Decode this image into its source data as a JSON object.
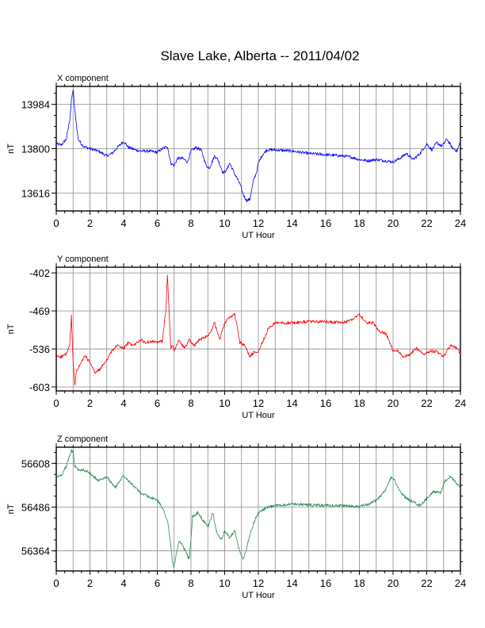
{
  "title": "Slave Lake, Alberta -- 2011/04/02",
  "chart_data": [
    {
      "type": "line",
      "title": "X component",
      "xlabel": "UT Hour",
      "ylabel": "nT",
      "xlim": [
        0,
        24
      ],
      "ylim": [
        13542,
        14058
      ],
      "xticks": [
        0,
        2,
        4,
        6,
        8,
        10,
        12,
        14,
        16,
        18,
        20,
        22,
        24
      ],
      "yticks": [
        13616,
        13800,
        13984
      ],
      "grid": true,
      "color": "#0000ff",
      "series": [
        {
          "x": [
            0,
            0.3,
            0.6,
            0.8,
            0.9,
            1.0,
            1.1,
            1.3,
            1.6,
            2.0,
            2.5,
            3.0,
            3.3,
            3.7,
            4.0,
            4.3,
            4.7,
            5.0,
            5.5,
            6.0,
            6.3,
            6.6,
            6.8,
            7.0,
            7.2,
            7.5,
            7.8,
            8.0,
            8.3,
            8.6,
            8.9,
            9.1,
            9.4,
            9.6,
            9.9,
            10.1,
            10.3,
            10.6,
            10.9,
            11.1,
            11.3,
            11.5,
            11.7,
            11.9,
            12.0,
            12.2,
            12.5,
            13.0,
            14.0,
            15.0,
            16.0,
            17.0,
            17.5,
            18.0,
            18.5,
            19.0,
            19.5,
            20.0,
            20.4,
            20.8,
            21.2,
            21.6,
            22.0,
            22.3,
            22.6,
            22.9,
            23.2,
            23.5,
            23.8,
            24.0
          ],
          "values": [
            13820,
            13815,
            13840,
            13920,
            14000,
            14045,
            13960,
            13840,
            13810,
            13800,
            13790,
            13770,
            13780,
            13810,
            13830,
            13805,
            13795,
            13790,
            13790,
            13785,
            13800,
            13810,
            13740,
            13730,
            13760,
            13760,
            13745,
            13790,
            13805,
            13795,
            13730,
            13720,
            13770,
            13755,
            13700,
            13710,
            13740,
            13695,
            13655,
            13610,
            13585,
            13590,
            13665,
            13705,
            13740,
            13770,
            13795,
            13795,
            13790,
            13780,
            13775,
            13770,
            13765,
            13755,
            13750,
            13755,
            13750,
            13745,
            13760,
            13780,
            13755,
            13780,
            13820,
            13795,
            13825,
            13810,
            13840,
            13805,
            13790,
            13830
          ]
        }
      ]
    },
    {
      "type": "line",
      "title": "Y component",
      "xlabel": "UT Hour",
      "ylabel": "nT",
      "xlim": [
        0,
        24
      ],
      "ylim": [
        -610,
        -392
      ],
      "xticks": [
        0,
        2,
        4,
        6,
        8,
        10,
        12,
        14,
        16,
        18,
        20,
        22,
        24
      ],
      "yticks": [
        -402,
        -469,
        -536,
        -603
      ],
      "grid": true,
      "color": "#ff0000",
      "series": [
        {
          "x": [
            0,
            0.3,
            0.6,
            0.8,
            0.9,
            1.0,
            1.1,
            1.2,
            1.4,
            1.7,
            2.0,
            2.3,
            2.6,
            3.0,
            3.3,
            3.6,
            4.0,
            4.3,
            4.6,
            5.0,
            5.3,
            5.6,
            6.0,
            6.3,
            6.5,
            6.6,
            6.7,
            6.8,
            6.9,
            7.0,
            7.3,
            7.6,
            7.9,
            8.2,
            8.5,
            8.8,
            9.1,
            9.4,
            9.7,
            10.0,
            10.3,
            10.6,
            10.9,
            11.2,
            11.5,
            11.8,
            12.0,
            12.3,
            12.6,
            13.0,
            14.0,
            15.0,
            16.0,
            17.0,
            17.5,
            18.0,
            18.4,
            18.8,
            19.2,
            19.6,
            20.0,
            20.3,
            20.6,
            21.0,
            21.4,
            21.8,
            22.2,
            22.6,
            23.0,
            23.4,
            23.8,
            24.0
          ],
          "values": [
            -548,
            -550,
            -545,
            -530,
            -478,
            -560,
            -600,
            -575,
            -565,
            -548,
            -560,
            -578,
            -572,
            -555,
            -540,
            -530,
            -535,
            -525,
            -530,
            -520,
            -525,
            -522,
            -525,
            -522,
            -470,
            -405,
            -470,
            -535,
            -530,
            -540,
            -520,
            -535,
            -520,
            -530,
            -520,
            -515,
            -510,
            -490,
            -520,
            -490,
            -480,
            -475,
            -525,
            -530,
            -550,
            -540,
            -540,
            -520,
            -500,
            -490,
            -490,
            -488,
            -488,
            -490,
            -485,
            -475,
            -490,
            -490,
            -505,
            -510,
            -540,
            -540,
            -550,
            -545,
            -535,
            -545,
            -540,
            -540,
            -550,
            -530,
            -535,
            -545
          ]
        }
      ]
    },
    {
      "type": "line",
      "title": "Z component",
      "xlabel": "UT Hour",
      "ylabel": "nT",
      "xlim": [
        0,
        24
      ],
      "ylim": [
        56308,
        56653
      ],
      "xticks": [
        0,
        2,
        4,
        6,
        8,
        10,
        12,
        14,
        16,
        18,
        20,
        22,
        24
      ],
      "yticks": [
        56364,
        56486,
        56608
      ],
      "grid": true,
      "color": "#2e8b57",
      "series": [
        {
          "x": [
            0,
            0.3,
            0.6,
            0.8,
            0.9,
            1.0,
            1.1,
            1.3,
            1.6,
            2.0,
            2.5,
            3.0,
            3.5,
            4.0,
            4.3,
            4.7,
            5.0,
            5.5,
            6.0,
            6.3,
            6.6,
            6.8,
            6.9,
            7.0,
            7.1,
            7.3,
            7.6,
            7.9,
            8.1,
            8.4,
            8.7,
            9.0,
            9.3,
            9.5,
            9.8,
            10.0,
            10.3,
            10.6,
            10.9,
            11.1,
            11.3,
            11.5,
            11.8,
            12.0,
            12.3,
            12.6,
            13.0,
            14.0,
            15.0,
            16.0,
            17.0,
            18.0,
            18.5,
            19.0,
            19.5,
            19.9,
            20.1,
            20.4,
            20.8,
            21.2,
            21.6,
            22.0,
            22.4,
            22.8,
            23.1,
            23.4,
            23.7,
            24.0
          ],
          "values": [
            56570,
            56575,
            56600,
            56630,
            56645,
            56640,
            56600,
            56590,
            56590,
            56580,
            56560,
            56570,
            56540,
            56575,
            56560,
            56540,
            56525,
            56515,
            56505,
            56485,
            56450,
            56380,
            56330,
            56320,
            56350,
            56390,
            56370,
            56340,
            56460,
            56470,
            56450,
            56430,
            56470,
            56420,
            56395,
            56420,
            56400,
            56420,
            56360,
            56340,
            56370,
            56410,
            56450,
            56470,
            56480,
            56485,
            56490,
            56495,
            56492,
            56490,
            56490,
            56488,
            56492,
            56505,
            56530,
            56570,
            56560,
            56530,
            56510,
            56500,
            56490,
            56510,
            56530,
            56525,
            56560,
            56570,
            56555,
            56540
          ]
        }
      ]
    }
  ]
}
